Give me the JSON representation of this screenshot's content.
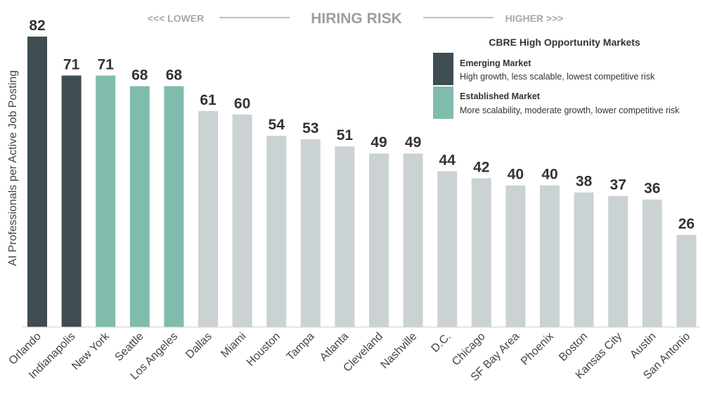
{
  "header": {
    "risk_title": "HIRING RISK",
    "lower_label": "<<< LOWER",
    "higher_label": "HIGHER >>>"
  },
  "legend": {
    "title": "CBRE High Opportunity Markets",
    "items": [
      {
        "name": "Emerging Market",
        "description": "High growth, less scalable, lowest competitive risk",
        "color": "#3e4d52"
      },
      {
        "name": "Established Market",
        "description": "More scalability, moderate growth, lower competitive risk",
        "color": "#80bcad"
      }
    ]
  },
  "colors": {
    "emerging": "#3e4d52",
    "established": "#80bcad",
    "other": "#cbd2d3",
    "axis": "#cccccc"
  },
  "chart_data": {
    "type": "bar",
    "ylabel": "AI Professionals per Active Job Posting",
    "xlabel": "",
    "ylim": [
      0,
      82
    ],
    "grid": false,
    "legend_position": "top-right",
    "categories": [
      "Orlando",
      "Indianapolis",
      "New York",
      "Seattle",
      "Los Angeles",
      "Dallas",
      "Miami",
      "Houston",
      "Tampa",
      "Atlanta",
      "Cleveland",
      "Nashville",
      "D.C.",
      "Chicago",
      "SF Bay Area",
      "Phoenix",
      "Boston",
      "Kansas City",
      "Austin",
      "San Antonio"
    ],
    "values": [
      82,
      71,
      71,
      68,
      68,
      61,
      60,
      54,
      53,
      51,
      49,
      49,
      44,
      42,
      40,
      40,
      38,
      37,
      36,
      26
    ],
    "groups": [
      "emerging",
      "emerging",
      "established",
      "established",
      "established",
      "other",
      "other",
      "other",
      "other",
      "other",
      "other",
      "other",
      "other",
      "other",
      "other",
      "other",
      "other",
      "other",
      "other",
      "other"
    ]
  }
}
